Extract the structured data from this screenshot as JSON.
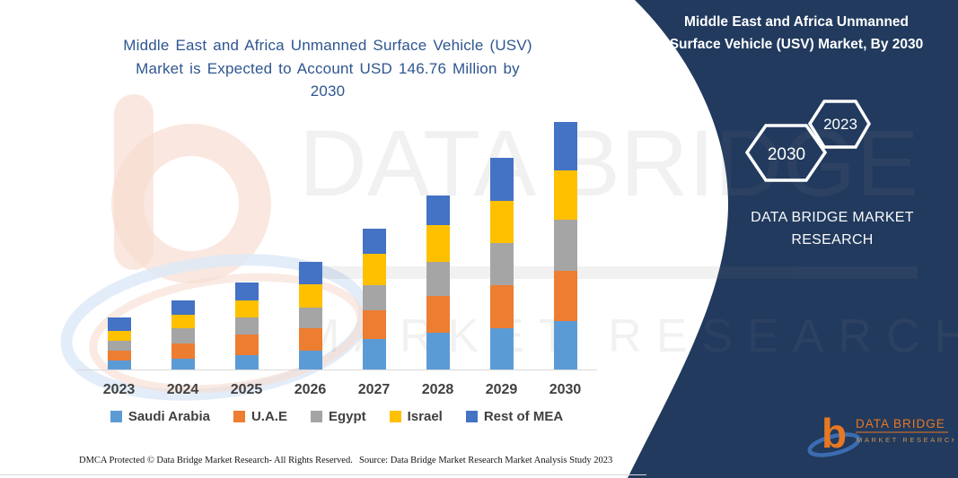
{
  "titles": {
    "main": "Middle East and Africa Unmanned Surface Vehicle (USV) Market is Expected to Account USD 146.76 Million by 2030",
    "main_lines": [
      "Middle East and Africa Unmanned Surface Vehicle (USV)",
      "Market is Expected to Account USD 146.76 Million by",
      "2030"
    ]
  },
  "chart_data": {
    "type": "bar",
    "subtype": "stacked-column",
    "title": "Middle East and Africa Unmanned Surface Vehicle (USV) Market is Expected to Account USD 146.76 Million by 2030",
    "unit": "USD Million",
    "categories": [
      "2023",
      "2024",
      "2025",
      "2026",
      "2027",
      "2028",
      "2029",
      "2030"
    ],
    "series": [
      {
        "name": "Saudi Arabia",
        "color": "#5B9BD5",
        "values": [
          5.3,
          6.2,
          8.5,
          11.0,
          18.1,
          21.8,
          24.5,
          28.7
        ]
      },
      {
        "name": "U.A.E",
        "color": "#ED7D31",
        "values": [
          5.8,
          9.4,
          12.2,
          13.3,
          17.0,
          21.8,
          25.5,
          29.8
        ]
      },
      {
        "name": "Egypt",
        "color": "#A5A5A5",
        "values": [
          5.7,
          8.9,
          10.3,
          12.4,
          14.9,
          20.2,
          25.0,
          30.3
        ]
      },
      {
        "name": "Israel",
        "color": "#FFC000",
        "values": [
          6.2,
          8.0,
          10.1,
          13.6,
          18.6,
          21.8,
          25.0,
          29.2
        ]
      },
      {
        "name": "Rest of MEA",
        "color": "#4472C4",
        "values": [
          7.6,
          8.3,
          10.3,
          13.8,
          14.9,
          17.5,
          25.5,
          28.8
        ]
      }
    ],
    "totals_estimated": [
      30.6,
      40.8,
      51.4,
      64.1,
      83.5,
      103.1,
      125.5,
      146.8
    ],
    "annotation": "USD 146.76 Million by 2030",
    "xlabel": "",
    "ylabel": "",
    "y_axis_visible": false,
    "gridlines": false,
    "legend_position": "bottom"
  },
  "side_panel": {
    "title": "Middle East and Africa Unmanned Surface Vehicle (USV) Market, By 2030",
    "title_lines": [
      "Middle East and Africa Unmanned",
      "Surface Vehicle (USV) Market, By 2030"
    ],
    "hexagons": {
      "large": "2030",
      "small": "2023"
    },
    "brand_lines": [
      "DATA BRIDGE MARKET",
      "RESEARCH"
    ]
  },
  "logo": {
    "glyph": "b",
    "name": "DATA BRIDGE",
    "sub": "MARKET RESEARCH"
  },
  "watermark": {
    "line1": "DATA BRIDGE",
    "line2": "MARKET RESEARCH"
  },
  "footer": {
    "left": "DMCA Protected © Data Bridge Market Research-  All Rights Reserved.",
    "source": "Source: Data Bridge Market Research  Market Analysis Study 2023"
  },
  "colors": {
    "panel_navy": "#213A5E",
    "title_blue": "#2E5690",
    "logo_orange": "#E87722",
    "logo_blue": "#3E6FB5",
    "axis_line": "#D9D9D9",
    "label_gray": "#404040"
  }
}
